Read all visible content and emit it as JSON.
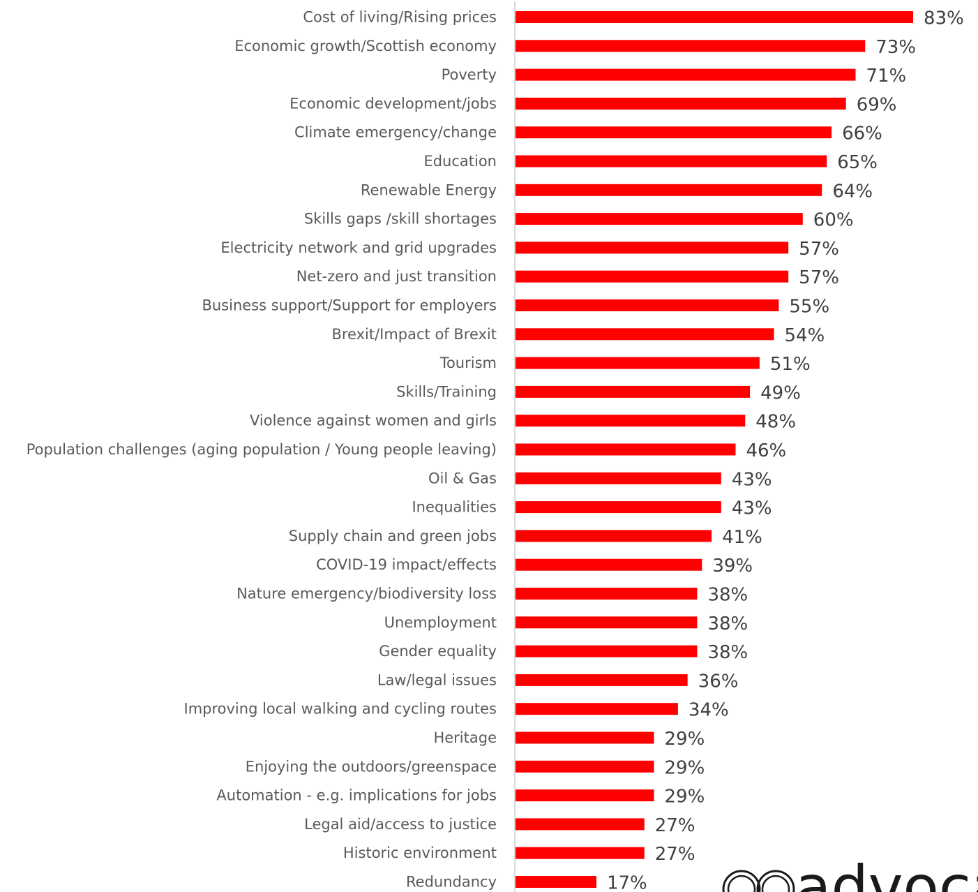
{
  "chart_data": {
    "type": "bar",
    "orientation": "horizontal",
    "categories": [
      "Cost of living/Rising prices",
      "Economic growth/Scottish economy",
      "Poverty",
      "Economic development/jobs",
      "Climate emergency/change",
      "Education",
      "Renewable Energy",
      "Skills gaps /skill shortages",
      "Electricity network and grid upgrades",
      "Net-zero and just transition",
      "Business support/Support for employers",
      "Brexit/Impact of Brexit",
      "Tourism",
      "Skills/Training",
      "Violence against women and girls",
      "Population challenges (aging population / Young people leaving)",
      "Oil & Gas",
      "Inequalities",
      "Supply chain and green jobs",
      "COVID-19 impact/effects",
      "Nature emergency/biodiversity loss",
      "Unemployment",
      "Gender equality",
      "Law/legal issues",
      "Improving local walking and cycling routes",
      "Heritage",
      "Enjoying the outdoors/greenspace",
      "Automation - e.g. implications for jobs",
      "Legal aid/access to justice",
      "Historic environment",
      "Redundancy"
    ],
    "values": [
      83,
      73,
      71,
      69,
      66,
      65,
      64,
      60,
      57,
      57,
      55,
      54,
      51,
      49,
      48,
      46,
      43,
      43,
      41,
      39,
      38,
      38,
      38,
      36,
      34,
      29,
      29,
      29,
      27,
      27,
      17
    ],
    "value_labels": [
      "83%",
      "73%",
      "71%",
      "69%",
      "66%",
      "65%",
      "64%",
      "60%",
      "57%",
      "57%",
      "55%",
      "54%",
      "51%",
      "49%",
      "48%",
      "46%",
      "43%",
      "43%",
      "41%",
      "39%",
      "38%",
      "38%",
      "38%",
      "36%",
      "34%",
      "29%",
      "29%",
      "29%",
      "27%",
      "27%",
      "17%"
    ],
    "xlim": [
      0,
      100
    ],
    "grid": false,
    "bar_color": "#ff0000",
    "axis_color": "#d9d9d9"
  },
  "logo": {
    "text": "advoca",
    "color": "#1a1a1a"
  }
}
